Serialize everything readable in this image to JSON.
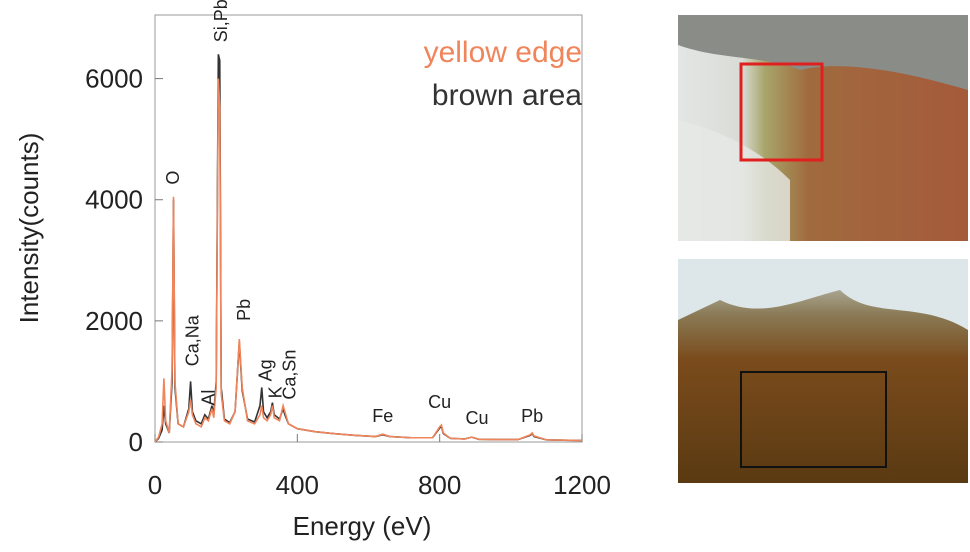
{
  "chart_data": {
    "type": "line",
    "xlabel": "Energy (eV)",
    "ylabel": "Intensity(counts)",
    "xlim": [
      0,
      1200
    ],
    "ylim": [
      0,
      7050
    ],
    "xticks": [
      0,
      400,
      800,
      1200
    ],
    "yticks": [
      0,
      2000,
      4000,
      6000
    ],
    "x": [
      0,
      10,
      20,
      25,
      30,
      40,
      48,
      52,
      56,
      65,
      80,
      95,
      100,
      105,
      115,
      130,
      140,
      150,
      160,
      165,
      172,
      178,
      182,
      186,
      195,
      210,
      225,
      237,
      245,
      260,
      280,
      295,
      300,
      305,
      315,
      325,
      330,
      335,
      350,
      360,
      365,
      375,
      400,
      450,
      500,
      560,
      620,
      640,
      660,
      720,
      780,
      800,
      805,
      810,
      830,
      870,
      890,
      910,
      960,
      1020,
      1055,
      1060,
      1065,
      1100,
      1150,
      1200
    ],
    "series": [
      {
        "name": "brown area",
        "color": "#333333",
        "values": [
          0,
          60,
          200,
          600,
          300,
          150,
          1000,
          4000,
          900,
          300,
          250,
          550,
          1000,
          500,
          350,
          300,
          450,
          380,
          600,
          450,
          1000,
          6400,
          6300,
          900,
          380,
          320,
          500,
          1650,
          850,
          380,
          330,
          600,
          900,
          500,
          400,
          500,
          650,
          450,
          380,
          550,
          450,
          300,
          220,
          170,
          140,
          110,
          90,
          120,
          90,
          70,
          70,
          230,
          260,
          140,
          60,
          50,
          80,
          45,
          40,
          40,
          110,
          140,
          90,
          35,
          30,
          25
        ]
      },
      {
        "name": "yellow edge",
        "color": "#f0845a",
        "values": [
          0,
          80,
          300,
          1050,
          350,
          150,
          1200,
          4050,
          1000,
          300,
          250,
          500,
          700,
          450,
          300,
          250,
          400,
          350,
          550,
          400,
          900,
          6000,
          5500,
          800,
          350,
          300,
          500,
          1700,
          900,
          350,
          300,
          450,
          600,
          400,
          350,
          450,
          600,
          400,
          350,
          600,
          500,
          300,
          220,
          170,
          140,
          110,
          90,
          130,
          90,
          70,
          70,
          250,
          280,
          150,
          60,
          50,
          80,
          45,
          40,
          40,
          120,
          150,
          100,
          35,
          30,
          25
        ]
      }
    ],
    "annotations": [
      {
        "text": "O",
        "x": 50,
        "y": 4250,
        "rotate": -90
      },
      {
        "text": "Si,Pb",
        "x": 186,
        "y": 6600,
        "rotate": -90
      },
      {
        "text": "Ca,Na",
        "x": 105,
        "y": 1250,
        "rotate": -90
      },
      {
        "text": "Al",
        "x": 150,
        "y": 600,
        "rotate": -90
      },
      {
        "text": "Pb",
        "x": 250,
        "y": 2000,
        "rotate": -90
      },
      {
        "text": "Ag",
        "x": 310,
        "y": 1000,
        "rotate": -90
      },
      {
        "text": "K",
        "x": 338,
        "y": 720,
        "rotate": -90
      },
      {
        "text": "Ca,Sn",
        "x": 378,
        "y": 700,
        "rotate": -90
      },
      {
        "text": "Fe",
        "x": 640,
        "y": 330,
        "rotate": 0
      },
      {
        "text": "Cu",
        "x": 800,
        "y": 560,
        "rotate": 0
      },
      {
        "text": "Cu",
        "x": 905,
        "y": 300,
        "rotate": 0
      },
      {
        "text": "Pb",
        "x": 1060,
        "y": 330,
        "rotate": 0
      }
    ]
  }
}
